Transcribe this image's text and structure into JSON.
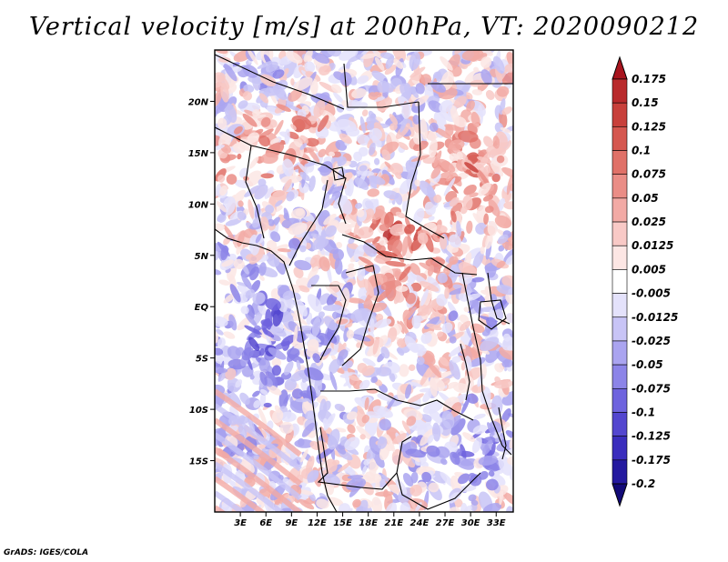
{
  "title": "Vertical velocity [m/s] at 200hPa, VT: 2020090212",
  "credit": "GrADS: IGES/COLA",
  "axes": {
    "lat_labels": [
      "20N",
      "15N",
      "10N",
      "5N",
      "EQ",
      "5S",
      "10S",
      "15S"
    ],
    "lat_values": [
      20,
      15,
      10,
      5,
      0,
      -5,
      -10,
      -15
    ],
    "lon_labels": [
      "3E",
      "6E",
      "9E",
      "12E",
      "15E",
      "18E",
      "21E",
      "24E",
      "27E",
      "30E",
      "33E"
    ],
    "lon_values": [
      3,
      6,
      9,
      12,
      15,
      18,
      21,
      24,
      27,
      30,
      33
    ],
    "lat_range": [
      -20,
      25
    ],
    "lon_range": [
      0,
      35
    ]
  },
  "colorbar": {
    "labels": [
      "0.175",
      "0.15",
      "0.125",
      "0.1",
      "0.075",
      "0.05",
      "0.025",
      "0.0125",
      "0.005",
      "-0.005",
      "-0.0125",
      "-0.025",
      "-0.05",
      "-0.075",
      "-0.1",
      "-0.125",
      "-0.175",
      "-0.2"
    ],
    "colors": [
      "#a8141e",
      "#b92a2c",
      "#c8403b",
      "#d5574f",
      "#e07168",
      "#ea8d86",
      "#f2aaa5",
      "#f8c9c6",
      "#fce6e4",
      "#ffffff",
      "#e4e2fb",
      "#c8c4f6",
      "#aaa4f0",
      "#8c84e8",
      "#6e63de",
      "#5346cf",
      "#3a2dbd",
      "#24199f",
      "#120a78"
    ]
  }
}
